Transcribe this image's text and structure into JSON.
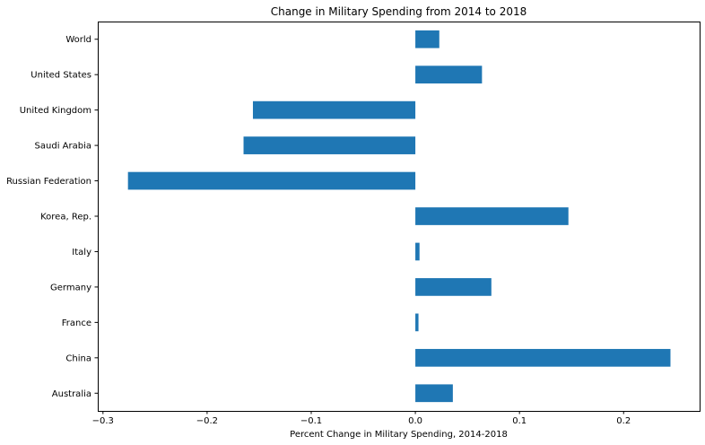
{
  "chart_data": {
    "type": "bar",
    "orientation": "horizontal",
    "title": "Change in Military Spending from 2014 to 2018",
    "xlabel": "Percent Change in Military Spending, 2014-2018",
    "ylabel": "",
    "categories": [
      "Australia",
      "China",
      "France",
      "Germany",
      "Italy",
      "Korea, Rep.",
      "Russian Federation",
      "Saudi Arabia",
      "United Kingdom",
      "United States",
      "World"
    ],
    "values": [
      0.036,
      0.245,
      0.003,
      0.073,
      0.004,
      0.147,
      -0.276,
      -0.165,
      -0.156,
      0.064,
      0.023
    ],
    "xlim": [
      -0.305,
      0.273
    ],
    "xticks": [
      -0.3,
      -0.2,
      -0.1,
      0.0,
      0.1,
      0.2
    ],
    "xtick_labels": [
      "−0.3",
      "−0.2",
      "−0.1",
      "0.0",
      "0.1",
      "0.2"
    ],
    "grid": false,
    "bar_color": "#1f77b4"
  }
}
